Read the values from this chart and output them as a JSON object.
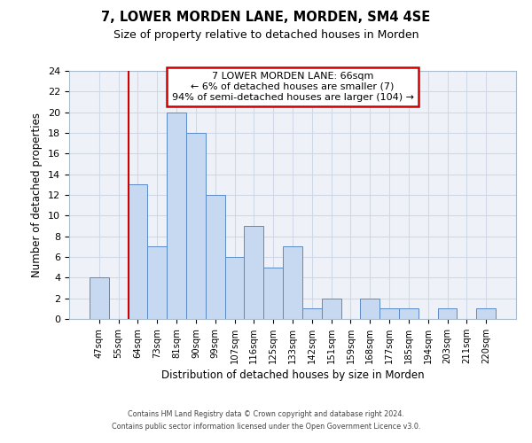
{
  "title": "7, LOWER MORDEN LANE, MORDEN, SM4 4SE",
  "subtitle": "Size of property relative to detached houses in Morden",
  "xlabel": "Distribution of detached houses by size in Morden",
  "ylabel": "Number of detached properties",
  "bar_labels": [
    "47sqm",
    "55sqm",
    "64sqm",
    "73sqm",
    "81sqm",
    "90sqm",
    "99sqm",
    "107sqm",
    "116sqm",
    "125sqm",
    "133sqm",
    "142sqm",
    "151sqm",
    "159sqm",
    "168sqm",
    "177sqm",
    "185sqm",
    "194sqm",
    "203sqm",
    "211sqm",
    "220sqm"
  ],
  "bar_heights": [
    4,
    0,
    13,
    7,
    20,
    18,
    12,
    6,
    9,
    5,
    7,
    1,
    2,
    0,
    2,
    1,
    1,
    0,
    1,
    0,
    1
  ],
  "bar_color": "#c6d9f0",
  "bar_edge_color": "#5a8ac6",
  "vline_x_index": 2,
  "vline_color": "#cc0000",
  "ylim": [
    0,
    24
  ],
  "yticks": [
    0,
    2,
    4,
    6,
    8,
    10,
    12,
    14,
    16,
    18,
    20,
    22,
    24
  ],
  "annotation_line1": "7 LOWER MORDEN LANE: 66sqm",
  "annotation_line2": "← 6% of detached houses are smaller (7)",
  "annotation_line3": "94% of semi-detached houses are larger (104) →",
  "footer_line1": "Contains HM Land Registry data © Crown copyright and database right 2024.",
  "footer_line2": "Contains public sector information licensed under the Open Government Licence v3.0.",
  "grid_color": "#d0d8e8",
  "background_color": "#eef2f8"
}
